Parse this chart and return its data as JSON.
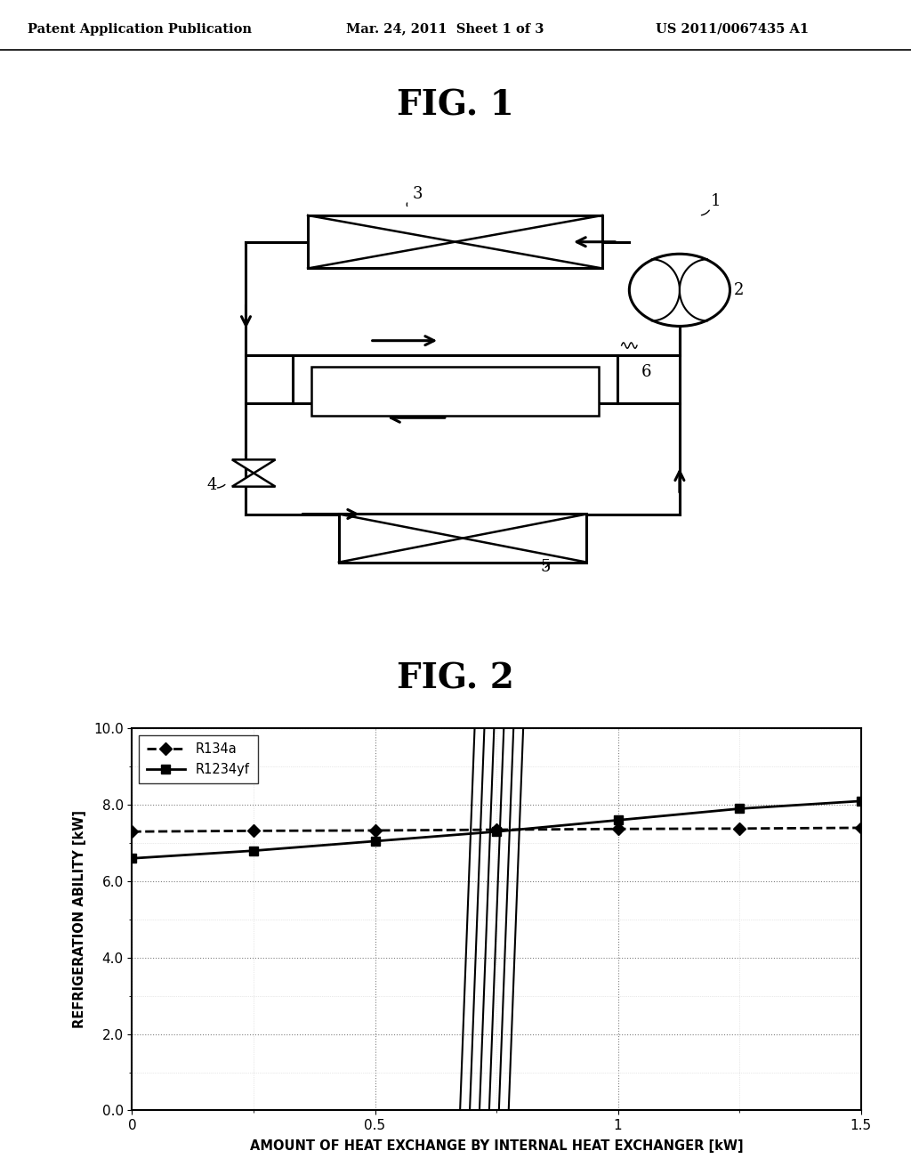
{
  "header_left": "Patent Application Publication",
  "header_center": "Mar. 24, 2011  Sheet 1 of 3",
  "header_right": "US 2011/0067435 A1",
  "fig1_title": "FIG. 1",
  "fig2_title": "FIG. 2",
  "r134a_x": [
    0,
    0.25,
    0.5,
    0.75,
    1.0,
    1.25,
    1.5
  ],
  "r134a_y": [
    7.3,
    7.32,
    7.33,
    7.35,
    7.37,
    7.38,
    7.4
  ],
  "r1234yf_x": [
    0,
    0.25,
    0.5,
    0.75,
    1.0,
    1.25,
    1.5
  ],
  "r1234yf_y": [
    6.6,
    6.8,
    7.05,
    7.3,
    7.6,
    7.9,
    8.1
  ],
  "xlabel": "AMOUNT OF HEAT EXCHANGE BY INTERNAL HEAT EXCHANGER [kW]",
  "ylabel": "REFRIGERATION ABILITY [kW]",
  "ylim": [
    0.0,
    10.0
  ],
  "xlim": [
    0,
    1.5
  ],
  "yticks": [
    0.0,
    2.0,
    4.0,
    6.0,
    8.0,
    10.0
  ],
  "xticks": [
    0,
    0.5,
    1.0,
    1.5
  ],
  "background_color": "#ffffff"
}
